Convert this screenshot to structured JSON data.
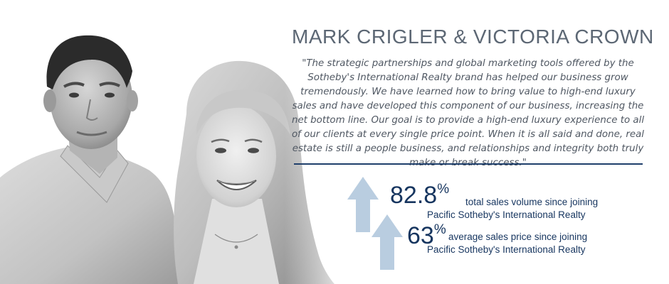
{
  "headline": "MARK CRIGLER & VICTORIA CROWN",
  "quote": "\"The strategic partnerships and global marketing tools offered by the Sotheby's International Realty brand has helped our business grow tremendously. We have learned how to bring value to high-end luxury sales and have developed this component of our business, increasing the net bottom line. Our goal is to provide a high-end luxury experience to all of our clients at every single price point. When it is all said and done, real estate is still a people business, and relationships and integrity both truly make or break success.\"",
  "stats": [
    {
      "value": "82.8",
      "unit": "%",
      "line1": "total sales volume since joining",
      "line2": "Pacific Sotheby's International Realty"
    },
    {
      "value": "63",
      "unit": "%",
      "line1": "average sales price since joining",
      "line2": "Pacific Sotheby's International Realty"
    }
  ],
  "colors": {
    "headline": "#5c6774",
    "quote": "#4f5762",
    "accent_navy": "#16355f",
    "rule": "#1f3f6b",
    "arrow": "#b9cde0"
  },
  "icons": [
    "up-arrow-icon",
    "up-arrow-icon"
  ]
}
